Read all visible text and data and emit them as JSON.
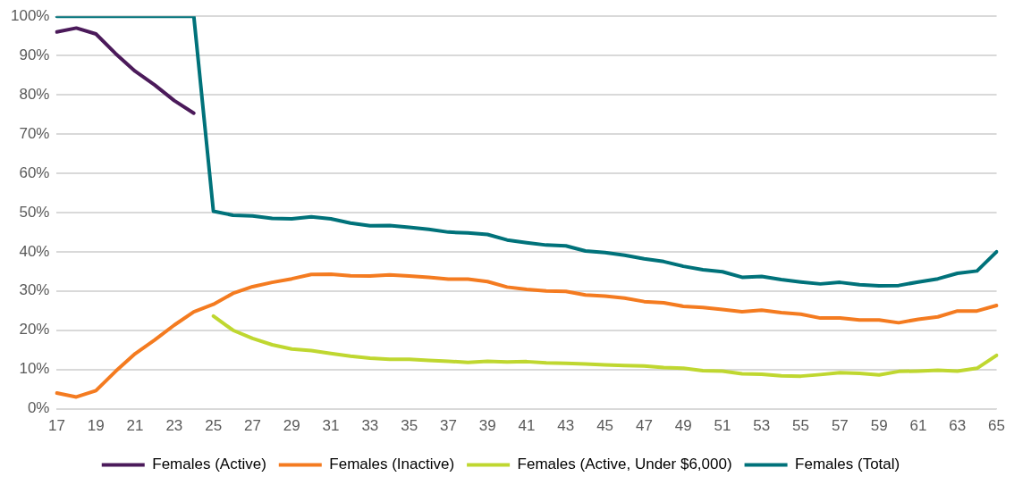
{
  "chart_data": {
    "type": "line",
    "categories": [
      "17",
      null,
      "19",
      null,
      "21",
      null,
      "23",
      null,
      "25",
      null,
      "27",
      null,
      "29",
      null,
      "31",
      null,
      "33",
      null,
      "35",
      null,
      "37",
      null,
      "39",
      null,
      "41",
      null,
      "43",
      null,
      "45",
      null,
      "47",
      null,
      "49",
      null,
      "51",
      null,
      "53",
      null,
      "55",
      null,
      "57",
      null,
      "59",
      null,
      "61",
      null,
      "63",
      null,
      "65"
    ],
    "series": [
      {
        "name": "Females (Active)",
        "color": "#4b1a5a",
        "values": [
          96,
          97,
          95.5,
          90.5,
          86,
          82.5,
          78.5,
          75.3,
          null,
          null,
          null,
          null,
          null,
          null,
          null,
          null,
          null,
          null,
          null,
          null,
          null,
          null,
          null,
          null,
          null,
          null,
          null,
          null,
          null,
          null,
          null,
          null,
          null,
          null,
          null,
          null,
          null,
          null,
          null,
          null,
          null,
          null,
          null,
          null,
          null,
          null,
          null,
          null,
          null
        ]
      },
      {
        "name": "Females (Inactive)",
        "color": "#f47b20",
        "values": [
          4,
          3,
          4.6,
          9.5,
          14,
          17.5,
          21.3,
          24.7,
          26.6,
          29.4,
          31.1,
          32.2,
          33.1,
          34.2,
          34.3,
          33.9,
          33.8,
          34.1,
          33.8,
          33.5,
          33,
          33,
          32.4,
          31,
          30.4,
          30,
          29.9,
          29,
          28.7,
          28.2,
          27.3,
          27,
          26.1,
          25.8,
          25.3,
          24.7,
          25.1,
          24.5,
          24.1,
          23.1,
          23.1,
          22.6,
          22.6,
          21.9,
          22.8,
          23.4,
          24.9,
          24.9,
          26.3
        ]
      },
      {
        "name": "Females (Active, Under $6,000)",
        "color": "#bfd730",
        "values": [
          null,
          null,
          null,
          null,
          null,
          null,
          null,
          null,
          23.6,
          20,
          17.9,
          16.3,
          15.2,
          14.8,
          14.1,
          13.4,
          12.9,
          12.6,
          12.6,
          12.3,
          12.1,
          11.8,
          12.1,
          11.9,
          12,
          11.7,
          11.6,
          11.4,
          11.2,
          11,
          10.9,
          10.5,
          10.3,
          9.7,
          9.6,
          8.9,
          8.8,
          8.4,
          8.3,
          8.7,
          9.2,
          9,
          8.6,
          9.5,
          9.6,
          9.8,
          9.6,
          10.3,
          13.6
        ]
      },
      {
        "name": "Females (Total)",
        "color": "#00727a",
        "values": [
          100,
          100,
          100,
          100,
          100,
          100,
          100,
          100,
          50.3,
          49.3,
          49.1,
          48.5,
          48.4,
          48.9,
          48.4,
          47.3,
          46.6,
          46.7,
          46.2,
          45.7,
          45,
          44.8,
          44.4,
          43,
          42.3,
          41.7,
          41.5,
          40.2,
          39.8,
          39.1,
          38.2,
          37.5,
          36.3,
          35.4,
          34.9,
          33.5,
          33.7,
          32.9,
          32.3,
          31.8,
          32.2,
          31.6,
          31.3,
          31.4,
          32.3,
          33.1,
          34.5,
          35.1,
          40
        ]
      }
    ],
    "ylim": [
      0,
      100
    ],
    "yticks": [
      {
        "value": 0,
        "label": "0%"
      },
      {
        "value": 10,
        "label": "10%"
      },
      {
        "value": 20,
        "label": "20%"
      },
      {
        "value": 30,
        "label": "30%"
      },
      {
        "value": 40,
        "label": "40%"
      },
      {
        "value": 50,
        "label": "50%"
      },
      {
        "value": 60,
        "label": "60%"
      },
      {
        "value": 70,
        "label": "70%"
      },
      {
        "value": 80,
        "label": "80%"
      },
      {
        "value": 90,
        "label": "90%"
      },
      {
        "value": 100,
        "label": "100%"
      }
    ],
    "grid": "y",
    "legend": "bottom",
    "marker": "none",
    "line_style": "solid"
  }
}
